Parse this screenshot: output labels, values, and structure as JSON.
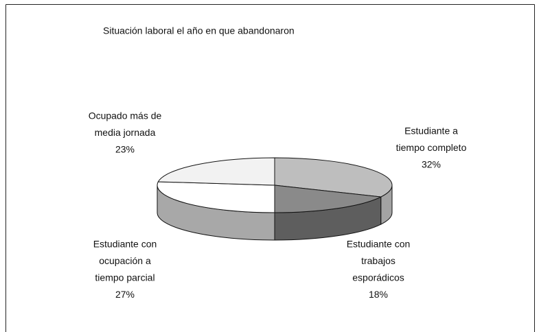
{
  "chart_data": {
    "type": "pie3d",
    "title": "Situación laboral el año en que abandonaron",
    "categories": [
      [
        "Estudiante a",
        "tiempo completo"
      ],
      [
        "Estudiante con",
        "trabajos",
        "esporádicos"
      ],
      [
        "Estudiante con",
        "ocupación a",
        "tiempo parcial"
      ],
      [
        "Ocupado más de",
        "media jornada"
      ]
    ],
    "values": [
      32,
      18,
      27,
      23
    ],
    "value_labels": [
      "32%",
      "18%",
      "27%",
      "23%"
    ],
    "colors": [
      "#bebebe",
      "#8a8a8a",
      "#ffffff",
      "#f2f2f2"
    ],
    "side_colors": [
      "#a3a3a3",
      "#5e5e5e",
      "#a8a8a8",
      "#d0d0d0"
    ]
  }
}
